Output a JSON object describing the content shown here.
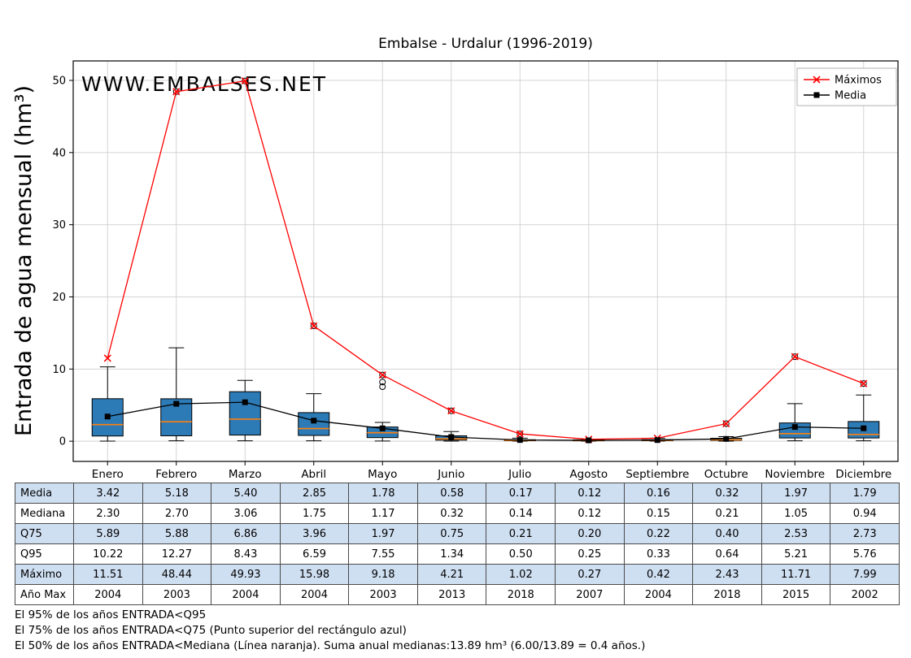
{
  "title": "Embalse - Urdalur (1996-2019)",
  "watermark": "WWW.EMBALSES.NET",
  "ylabel": "Entrada de agua mensual (hm³)",
  "legend": [
    {
      "label": "Máximos",
      "color": "#ff0000",
      "marker": "x"
    },
    {
      "label": "Media",
      "color": "#000000",
      "marker": "square"
    }
  ],
  "chart_data": {
    "type": "boxplot",
    "title": "Embalse - Urdalur (1996-2019)",
    "xlabel": "",
    "ylabel": "Entrada de agua mensual (hm³)",
    "categories": [
      "Enero",
      "Febrero",
      "Marzo",
      "Abril",
      "Mayo",
      "Junio",
      "Julio",
      "Agosto",
      "Septiembre",
      "Octubre",
      "Noviembre",
      "Diciembre"
    ],
    "yticks": [
      0,
      10,
      20,
      30,
      40,
      50
    ],
    "ylim": [
      -2.8,
      52.7
    ],
    "grid": true,
    "legend_position": "top-right",
    "box_fill": "#2d7bb6",
    "median_color": "#ff7f0e",
    "series": [
      {
        "name": "Máximos",
        "color": "#ff0000",
        "marker": "x",
        "values": [
          11.51,
          48.44,
          49.93,
          15.98,
          9.18,
          4.21,
          1.02,
          0.27,
          0.42,
          2.43,
          11.71,
          7.99
        ]
      },
      {
        "name": "Media",
        "color": "#000000",
        "marker": "square",
        "values": [
          3.42,
          5.18,
          5.4,
          2.85,
          1.78,
          0.58,
          0.17,
          0.12,
          0.16,
          0.32,
          1.97,
          1.79
        ]
      }
    ],
    "boxes": [
      {
        "lo": 0.02,
        "q1": 0.72,
        "median": 2.3,
        "q3": 5.89,
        "hi": 10.3,
        "outliers": []
      },
      {
        "lo": 0.05,
        "q1": 0.75,
        "median": 2.7,
        "q3": 5.88,
        "hi": 12.95,
        "outliers": [
          48.44
        ]
      },
      {
        "lo": 0.05,
        "q1": 0.85,
        "median": 3.06,
        "q3": 6.86,
        "hi": 8.43,
        "outliers": [
          49.93
        ]
      },
      {
        "lo": 0.05,
        "q1": 0.8,
        "median": 1.75,
        "q3": 3.96,
        "hi": 6.59,
        "outliers": [
          15.98
        ]
      },
      {
        "lo": 0.03,
        "q1": 0.5,
        "median": 1.17,
        "q3": 1.97,
        "hi": 2.6,
        "outliers": [
          7.55,
          8.2,
          9.18
        ]
      },
      {
        "lo": 0.02,
        "q1": 0.15,
        "median": 0.32,
        "q3": 0.75,
        "hi": 1.34,
        "outliers": [
          4.21
        ]
      },
      {
        "lo": 0.01,
        "q1": 0.07,
        "median": 0.14,
        "q3": 0.21,
        "hi": 0.42,
        "outliers": [
          1.02
        ]
      },
      {
        "lo": 0.01,
        "q1": 0.06,
        "median": 0.12,
        "q3": 0.2,
        "hi": 0.27,
        "outliers": []
      },
      {
        "lo": 0.01,
        "q1": 0.08,
        "median": 0.15,
        "q3": 0.22,
        "hi": 0.42,
        "outliers": []
      },
      {
        "lo": 0.02,
        "q1": 0.12,
        "median": 0.21,
        "q3": 0.4,
        "hi": 0.64,
        "outliers": [
          2.43
        ]
      },
      {
        "lo": 0.05,
        "q1": 0.45,
        "median": 1.05,
        "q3": 2.53,
        "hi": 5.21,
        "outliers": [
          11.71
        ]
      },
      {
        "lo": 0.05,
        "q1": 0.45,
        "median": 0.94,
        "q3": 2.73,
        "hi": 6.4,
        "outliers": [
          7.99
        ]
      }
    ]
  },
  "table": {
    "highlight_color": "#cfdff2",
    "row_labels": [
      "Media",
      "Mediana",
      "Q75",
      "Q95",
      "Máximo",
      "Año Max"
    ],
    "rows": [
      [
        "3.42",
        "5.18",
        "5.40",
        "2.85",
        "1.78",
        "0.58",
        "0.17",
        "0.12",
        "0.16",
        "0.32",
        "1.97",
        "1.79"
      ],
      [
        "2.30",
        "2.70",
        "3.06",
        "1.75",
        "1.17",
        "0.32",
        "0.14",
        "0.12",
        "0.15",
        "0.21",
        "1.05",
        "0.94"
      ],
      [
        "5.89",
        "5.88",
        "6.86",
        "3.96",
        "1.97",
        "0.75",
        "0.21",
        "0.20",
        "0.22",
        "0.40",
        "2.53",
        "2.73"
      ],
      [
        "10.22",
        "12.27",
        "8.43",
        "6.59",
        "7.55",
        "1.34",
        "0.50",
        "0.25",
        "0.33",
        "0.64",
        "5.21",
        "5.76"
      ],
      [
        "11.51",
        "48.44",
        "49.93",
        "15.98",
        "9.18",
        "4.21",
        "1.02",
        "0.27",
        "0.42",
        "2.43",
        "11.71",
        "7.99"
      ],
      [
        "2004",
        "2003",
        "2004",
        "2004",
        "2003",
        "2013",
        "2018",
        "2007",
        "2004",
        "2018",
        "2015",
        "2002"
      ]
    ]
  },
  "notes": [
    "El 95% de los años ENTRADA<Q95",
    "El 75% de los años ENTRADA<Q75 (Punto superior del rectángulo azul)",
    "El 50% de los años ENTRADA<Mediana (Línea naranja). Suma anual medianas:13.89 hm³ (6.00/13.89 = 0.4 años.)"
  ]
}
